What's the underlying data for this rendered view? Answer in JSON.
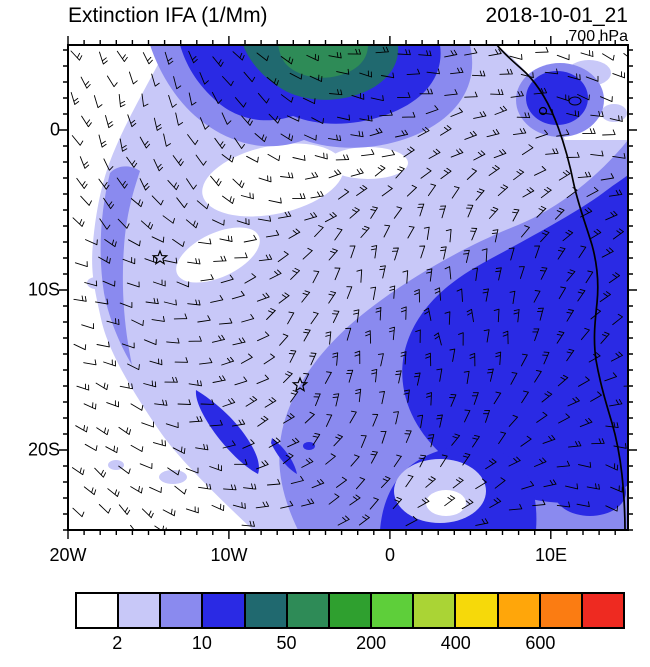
{
  "header": {
    "title": "Extinction IFA (1/Mm)",
    "datetime": "2018-10-01_21",
    "level": "700 hPa"
  },
  "axes": {
    "y": [
      "0",
      "10S",
      "20S"
    ],
    "x": [
      "20W",
      "10W",
      "0",
      "10E"
    ]
  },
  "palette": {
    "white": "#ffffff",
    "lavender": "#c8c8f8",
    "periwinkle": "#8a8aef",
    "blue": "#2a2ae4",
    "teal": "#20696f",
    "seagreen": "#2e8b57"
  },
  "colorbar": {
    "colors": [
      "#ffffff",
      "#c8c8f8",
      "#8a8aef",
      "#2a2ae4",
      "#20696f",
      "#2e8b57",
      "#2fa02f",
      "#5ecf3a",
      "#aad435",
      "#f6d90a",
      "#ffa60a",
      "#fb7c12",
      "#ee2a21"
    ],
    "labels": [
      {
        "text": "2",
        "boundary": 1
      },
      {
        "text": "10",
        "boundary": 3
      },
      {
        "text": "50",
        "boundary": 5
      },
      {
        "text": "200",
        "boundary": 7
      },
      {
        "text": "400",
        "boundary": 9
      },
      {
        "text": "600",
        "boundary": 11
      }
    ]
  },
  "chart_data": {
    "type": "heatmap",
    "title": "Extinction IFA (1/Mm)",
    "variable": "Extinction IFA",
    "units": "1/Mm",
    "datetime": "2018-10-01_21",
    "level": "700 hPa",
    "x_axis": {
      "tick_labels": [
        "20W",
        "10W",
        "0",
        "10E"
      ],
      "lon_range": [
        "20W",
        "15E"
      ]
    },
    "y_axis": {
      "tick_labels": [
        "0",
        "10S",
        "20S"
      ],
      "lat_range": [
        "5N",
        "25S"
      ]
    },
    "color_scale": {
      "tick_labels": [
        "2",
        "10",
        "50",
        "200",
        "400",
        "600"
      ],
      "n_cells": 13
    },
    "field_summary": [
      {
        "region": "plume along northern boundary near 8W-3E, 3N-5N",
        "values": "200-600 (teal/green maximum inside blue plume)"
      },
      {
        "region": "southeast Atlantic off Angola/Congo coast, 3E-15E / 5S-20S",
        "values": "50-200 (deep blue)"
      },
      {
        "region": "central basin",
        "values": "5-50 (light purple to blue)"
      },
      {
        "region": "northwest and southwest corners",
        "values": "below 2 (white)"
      }
    ],
    "markers": [
      {
        "type": "star",
        "approx_position": "14W, 8S"
      },
      {
        "type": "star",
        "approx_position": "6W, 16S"
      }
    ],
    "overlays": [
      "700 hPa wind barbs (5-15 kt)",
      "African west coastline"
    ]
  }
}
